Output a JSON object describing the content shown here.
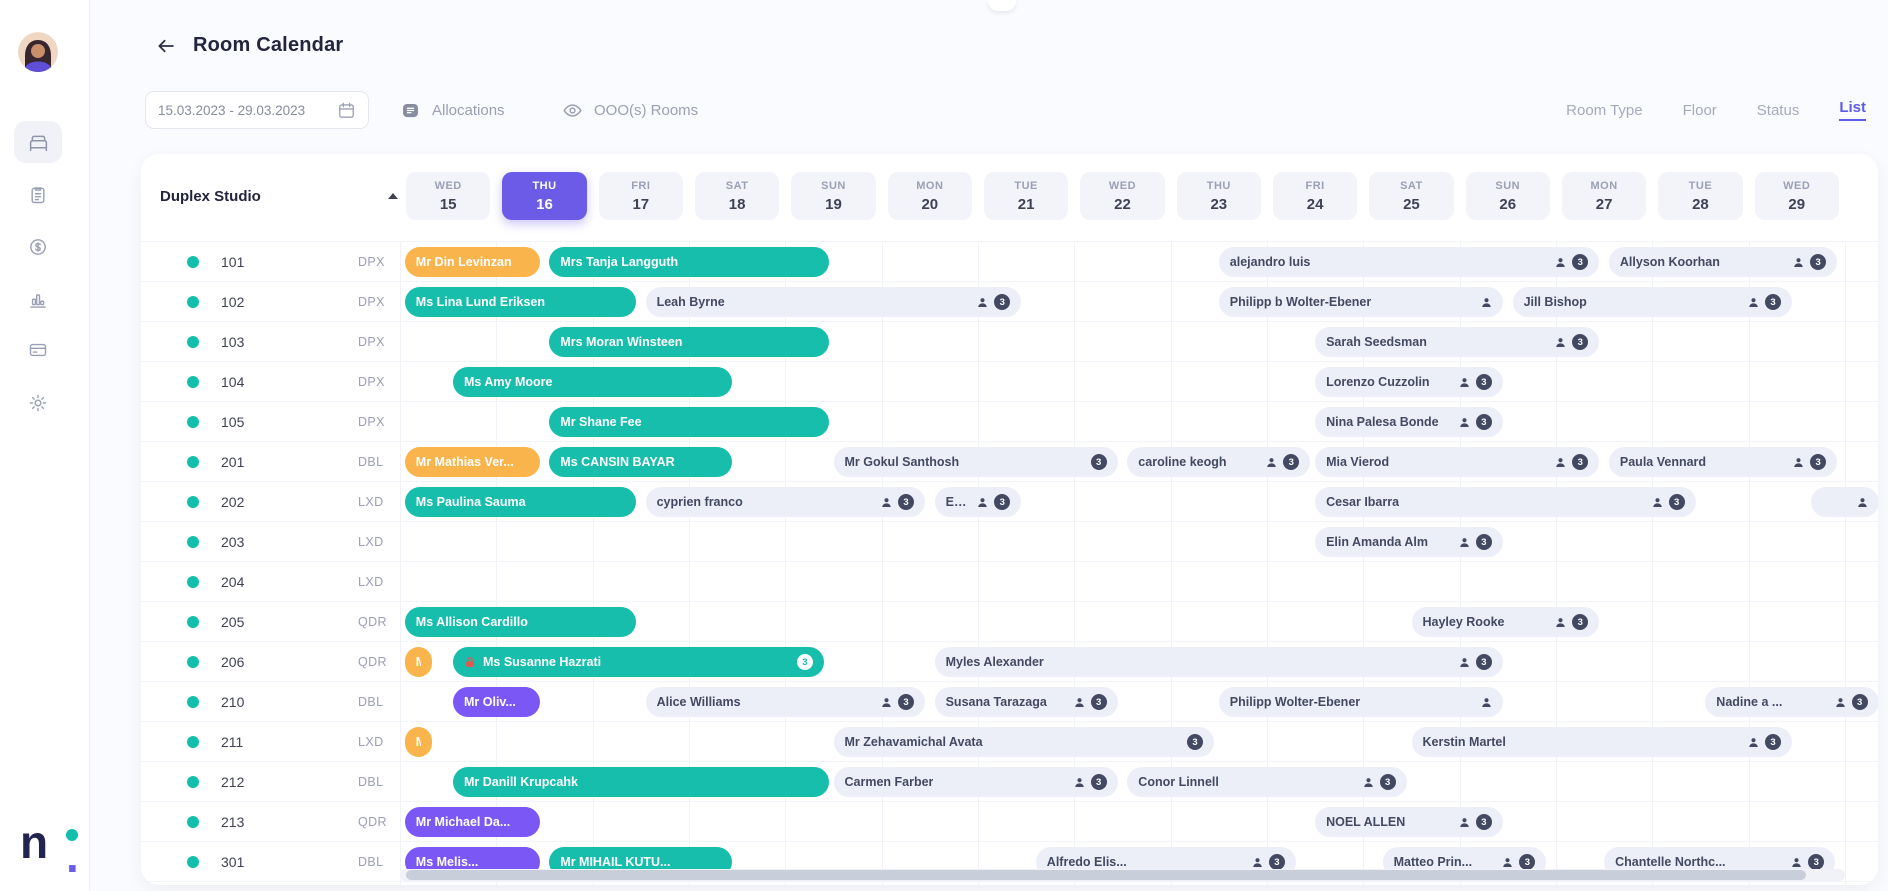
{
  "header": {
    "title": "Room Calendar"
  },
  "controls": {
    "date_range": "15.03.2023  -  29.03.2023",
    "allocations": "Allocations",
    "ooo_rooms": "OOO(s) Rooms",
    "view_filters": [
      {
        "label": "Room Type",
        "active": false
      },
      {
        "label": "Floor",
        "active": false
      },
      {
        "label": "Status",
        "active": false
      },
      {
        "label": "List",
        "active": true
      }
    ]
  },
  "sidebar": {
    "logo_text": "n",
    "logo_dot": ".",
    "items": [
      {
        "icon": "bed-icon",
        "active": true
      },
      {
        "icon": "clipboard-icon",
        "active": false
      },
      {
        "icon": "dollar-icon",
        "active": false
      },
      {
        "icon": "chart-icon",
        "active": false
      },
      {
        "icon": "card-icon",
        "active": false
      },
      {
        "icon": "gear-icon",
        "active": false
      }
    ]
  },
  "colors": {
    "accent_purple": "#6B5BE6",
    "bar_teal": "#17BEAC",
    "bar_orange": "#F9B54C",
    "bar_purple": "#7B57F6",
    "bar_light": "#ECEFF7",
    "status_dot": "#12BFAC",
    "active_link": "#5D5BE8"
  },
  "calendar": {
    "group": {
      "label": "Duplex Studio",
      "collapsed": false
    },
    "days": [
      {
        "dow": "WED",
        "date": "15"
      },
      {
        "dow": "THU",
        "date": "16",
        "active": true
      },
      {
        "dow": "FRI",
        "date": "17"
      },
      {
        "dow": "SAT",
        "date": "18"
      },
      {
        "dow": "SUN",
        "date": "19"
      },
      {
        "dow": "MON",
        "date": "20"
      },
      {
        "dow": "TUE",
        "date": "21"
      },
      {
        "dow": "WED",
        "date": "22"
      },
      {
        "dow": "THU",
        "date": "23"
      },
      {
        "dow": "FRI",
        "date": "24"
      },
      {
        "dow": "SAT",
        "date": "25"
      },
      {
        "dow": "SUN",
        "date": "26"
      },
      {
        "dow": "MON",
        "date": "27"
      },
      {
        "dow": "TUE",
        "date": "28"
      },
      {
        "dow": "WED",
        "date": "29"
      }
    ],
    "rows": [
      {
        "room": "101",
        "type": "DPX",
        "bars": [
          {
            "label": "Mr Din Levinzan",
            "kind": "orange",
            "start": 0.05,
            "end": 1.45
          },
          {
            "label": "Mrs Tanja Langguth",
            "kind": "teal",
            "start": 1.55,
            "end": 4.45
          },
          {
            "label": "alejandro luis",
            "kind": "light",
            "start": 8.5,
            "end": 12.45,
            "person": true,
            "count": "3"
          },
          {
            "label": "Allyson Koorhan",
            "kind": "light",
            "start": 12.55,
            "end": 14.92,
            "person": true,
            "count": "3"
          }
        ]
      },
      {
        "room": "102",
        "type": "DPX",
        "bars": [
          {
            "label": "Ms Lina Lund Eriksen",
            "kind": "teal",
            "start": 0.05,
            "end": 2.45
          },
          {
            "label": "Leah Byrne",
            "kind": "light",
            "start": 2.55,
            "end": 6.45,
            "person": true,
            "count": "3"
          },
          {
            "label": "Philipp b Wolter-Ebener",
            "kind": "light",
            "start": 8.5,
            "end": 11.45,
            "person": true
          },
          {
            "label": "Jill Bishop",
            "kind": "light",
            "start": 11.55,
            "end": 14.45,
            "person": true,
            "count": "3"
          }
        ]
      },
      {
        "room": "103",
        "type": "DPX",
        "bars": [
          {
            "label": "Mrs Moran Winsteen",
            "kind": "teal",
            "start": 1.55,
            "end": 4.45
          },
          {
            "label": "Sarah Seedsman",
            "kind": "light",
            "start": 9.5,
            "end": 12.45,
            "person": true,
            "count": "3"
          }
        ]
      },
      {
        "room": "104",
        "type": "DPX",
        "bars": [
          {
            "label": "Ms Amy Moore",
            "kind": "teal",
            "start": 0.55,
            "end": 3.45
          },
          {
            "label": "Lorenzo Cuzzolin",
            "kind": "light",
            "start": 9.5,
            "end": 11.45,
            "person": true,
            "count": "3"
          }
        ]
      },
      {
        "room": "105",
        "type": "DPX",
        "bars": [
          {
            "label": "Mr Shane Fee",
            "kind": "teal",
            "start": 1.55,
            "end": 4.45
          },
          {
            "label": "Nina Palesa Bonde",
            "kind": "light",
            "start": 9.5,
            "end": 11.45,
            "person": true,
            "count": "3"
          }
        ]
      },
      {
        "room": "201",
        "type": "DBL",
        "bars": [
          {
            "label": "Mr Mathias Ver...",
            "kind": "orange",
            "start": 0.05,
            "end": 1.45
          },
          {
            "label": "Ms CANSIN BAYAR",
            "kind": "teal",
            "start": 1.55,
            "end": 3.45
          },
          {
            "label": "Mr Gokul Santhosh",
            "kind": "light",
            "start": 4.5,
            "end": 7.45,
            "count": "3"
          },
          {
            "label": "caroline keogh",
            "kind": "light",
            "start": 7.55,
            "end": 9.45,
            "person": true,
            "count": "3"
          },
          {
            "label": "Mia Vierod",
            "kind": "light",
            "start": 9.5,
            "end": 12.45,
            "person": true,
            "count": "3"
          },
          {
            "label": "Paula Vennard",
            "kind": "light",
            "start": 12.55,
            "end": 14.92,
            "person": true,
            "count": "3"
          }
        ]
      },
      {
        "room": "202",
        "type": "LXD",
        "bars": [
          {
            "label": "Ms Paulina Sauma",
            "kind": "teal",
            "start": 0.05,
            "end": 2.45
          },
          {
            "label": "cyprien franco",
            "kind": "light",
            "start": 2.55,
            "end": 5.45,
            "person": true,
            "count": "3"
          },
          {
            "label": "Ev...",
            "kind": "light",
            "start": 5.55,
            "end": 6.45,
            "person": true,
            "count": "3"
          },
          {
            "label": "Cesar Ibarra",
            "kind": "light",
            "start": 9.5,
            "end": 13.45,
            "person": true,
            "count": "3"
          },
          {
            "label": "",
            "kind": "light",
            "start": 14.65,
            "end": 15.35,
            "person": true
          }
        ]
      },
      {
        "room": "203",
        "type": "LXD",
        "bars": [
          {
            "label": "Elin Amanda Alm",
            "kind": "light",
            "start": 9.5,
            "end": 11.45,
            "person": true,
            "count": "3"
          }
        ]
      },
      {
        "room": "204",
        "type": "LXD",
        "bars": []
      },
      {
        "room": "205",
        "type": "QDR",
        "bars": [
          {
            "label": "Ms Allison Cardillo",
            "kind": "teal",
            "start": 0.05,
            "end": 2.45
          },
          {
            "label": "Hayley Rooke",
            "kind": "light",
            "start": 10.5,
            "end": 12.45,
            "person": true,
            "count": "3"
          }
        ]
      },
      {
        "room": "206",
        "type": "QDR",
        "bars": [
          {
            "label": "M",
            "kind": "orange",
            "start": 0.05,
            "end": 0.33
          },
          {
            "label": "Ms Susanne Hazrati",
            "kind": "teal",
            "start": 0.55,
            "end": 4.4,
            "lock": true,
            "count": "3"
          },
          {
            "label": "Myles Alexander",
            "kind": "light",
            "start": 5.55,
            "end": 11.45,
            "person": true,
            "count": "3"
          }
        ]
      },
      {
        "room": "210",
        "type": "DBL",
        "bars": [
          {
            "label": "Mr Oliv...",
            "kind": "purple",
            "start": 0.55,
            "end": 1.45
          },
          {
            "label": "Alice Williams",
            "kind": "light",
            "start": 2.55,
            "end": 5.45,
            "person": true,
            "count": "3"
          },
          {
            "label": "Susana Tarazaga",
            "kind": "light",
            "start": 5.55,
            "end": 7.45,
            "person": true,
            "count": "3"
          },
          {
            "label": "Philipp Wolter-Ebener",
            "kind": "light",
            "start": 8.5,
            "end": 11.45,
            "person": true
          },
          {
            "label": "Nadine a ...",
            "kind": "light",
            "start": 13.55,
            "end": 15.35,
            "person": true,
            "count": "3"
          }
        ]
      },
      {
        "room": "211",
        "type": "LXD",
        "bars": [
          {
            "label": "M",
            "kind": "orange",
            "start": 0.05,
            "end": 0.33
          },
          {
            "label": "Mr Zehavamichal Avata",
            "kind": "light",
            "start": 4.5,
            "end": 8.45,
            "count": "3"
          },
          {
            "label": "Kerstin Martel",
            "kind": "light",
            "start": 10.5,
            "end": 14.45,
            "person": true,
            "count": "3"
          }
        ]
      },
      {
        "room": "212",
        "type": "DBL",
        "bars": [
          {
            "label": "Mr Danill Krupcahk",
            "kind": "teal",
            "start": 0.55,
            "end": 4.45
          },
          {
            "label": "Carmen Farber",
            "kind": "light",
            "start": 4.5,
            "end": 7.45,
            "person": true,
            "count": "3"
          },
          {
            "label": "Conor Linnell",
            "kind": "light",
            "start": 7.55,
            "end": 10.45,
            "person": true,
            "count": "3"
          }
        ]
      },
      {
        "room": "213",
        "type": "QDR",
        "bars": [
          {
            "label": "Mr Michael Da...",
            "kind": "purple",
            "start": 0.05,
            "end": 1.45
          },
          {
            "label": "NOEL ALLEN",
            "kind": "light",
            "start": 9.5,
            "end": 11.45,
            "person": true,
            "count": "3"
          }
        ]
      },
      {
        "room": "301",
        "type": "DBL",
        "bars": [
          {
            "label": "Ms Melis...",
            "kind": "purple",
            "start": 0.05,
            "end": 1.45
          },
          {
            "label": "Mr MIHAIL KUTU...",
            "kind": "teal",
            "start": 1.55,
            "end": 3.45
          },
          {
            "label": "Alfredo Elis...",
            "kind": "light",
            "start": 6.6,
            "end": 9.3,
            "person": true,
            "count": "3"
          },
          {
            "label": "Matteo Prin...",
            "kind": "light",
            "start": 10.2,
            "end": 11.9,
            "person": true,
            "count": "3"
          },
          {
            "label": "Chantelle Northc...",
            "kind": "light",
            "start": 12.5,
            "end": 14.9,
            "person": true,
            "count": "3"
          }
        ]
      }
    ]
  }
}
